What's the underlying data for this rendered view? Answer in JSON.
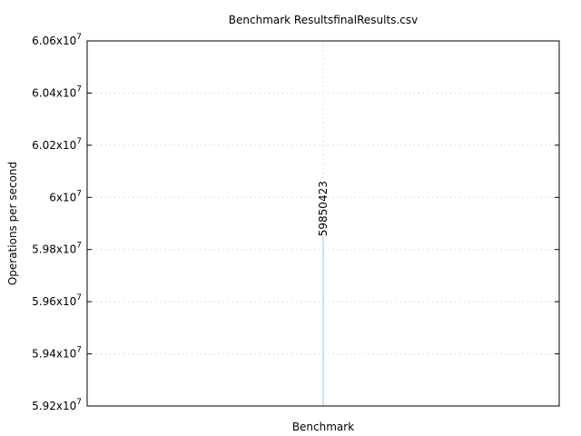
{
  "chart_data": {
    "type": "bar",
    "title": "Benchmark ResultsfinalResults.csv",
    "xlabel": "Benchmark",
    "ylabel": "Operations per second",
    "ylim": [
      59200000,
      60600000
    ],
    "yticks": [
      {
        "mantissa": "5.92",
        "exp": "7"
      },
      {
        "mantissa": "5.94",
        "exp": "7"
      },
      {
        "mantissa": "5.96",
        "exp": "7"
      },
      {
        "mantissa": "5.98",
        "exp": "7"
      },
      {
        "mantissa": "6",
        "exp": "7"
      },
      {
        "mantissa": "6.02",
        "exp": "7"
      },
      {
        "mantissa": "6.04",
        "exp": "7"
      },
      {
        "mantissa": "6.06",
        "exp": "7"
      }
    ],
    "ytick_values": [
      59200000,
      59400000,
      59600000,
      59800000,
      60000000,
      60200000,
      60400000,
      60600000
    ],
    "values": [
      59850423
    ],
    "data_labels": [
      "59850423"
    ],
    "grid": true,
    "bar_color": "#87ceeb",
    "grid_color": "#c8c8c8"
  }
}
